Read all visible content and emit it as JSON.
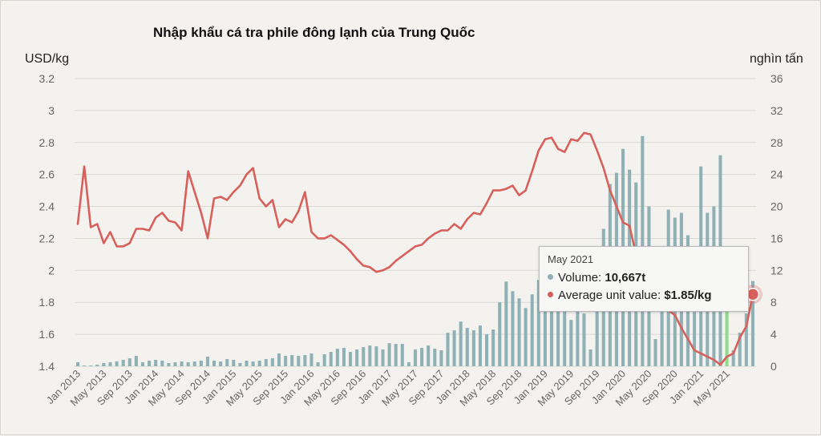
{
  "chart_data": {
    "type": "bar+line",
    "title": "Nhập khẩu cá tra phile đông lạnh của Trung Quốc",
    "y_left_label": "USD/kg",
    "y_right_label": "nghìn tấn",
    "y_left_ticks": [
      "1.4",
      "1.6",
      "1.8",
      "2",
      "2.2",
      "2.4",
      "2.6",
      "2.8",
      "3",
      "3.2"
    ],
    "y_right_ticks": [
      "0",
      "4",
      "8",
      "12",
      "16",
      "20",
      "24",
      "28",
      "32",
      "36"
    ],
    "ylim_left": [
      1.4,
      3.2
    ],
    "ylim_right": [
      0,
      36
    ],
    "grid": true,
    "x_tick_labels": [
      "Jan 2013",
      "May 2013",
      "Sep 2013",
      "Jan 2014",
      "May 2014",
      "Sep 2014",
      "Jan 2015",
      "May 2015",
      "Sep 2015",
      "Jan 2016",
      "May 2016",
      "Sep 2016",
      "Jan 2017",
      "May 2017",
      "Sep 2017",
      "Jan 2018",
      "May 2018",
      "Sep 2018",
      "Jan 2019",
      "May 2019",
      "Sep 2019",
      "Jan 2020",
      "May 2020",
      "Sep 2020",
      "Jan 2021",
      "May 2021"
    ],
    "x_start": "2013-01",
    "series": [
      {
        "name": "Volume",
        "unit": "nghìn tấn",
        "axis": "right",
        "kind": "bar",
        "values": [
          0.5,
          0.1,
          0.1,
          0.2,
          0.4,
          0.5,
          0.6,
          0.8,
          1.0,
          1.3,
          0.5,
          0.7,
          0.8,
          0.7,
          0.4,
          0.5,
          0.6,
          0.5,
          0.6,
          0.7,
          1.2,
          0.7,
          0.6,
          0.9,
          0.8,
          0.4,
          0.7,
          0.6,
          0.7,
          0.9,
          1.0,
          1.6,
          1.3,
          1.4,
          1.3,
          1.4,
          1.6,
          0.5,
          1.5,
          1.8,
          2.2,
          2.3,
          1.8,
          2.1,
          2.4,
          2.6,
          2.5,
          2.1,
          2.9,
          2.8,
          2.8,
          0.5,
          2.1,
          2.3,
          2.6,
          2.2,
          2.0,
          4.2,
          4.5,
          5.6,
          4.8,
          4.5,
          5.1,
          4.0,
          4.6,
          8.0,
          10.6,
          9.4,
          8.5,
          7.3,
          9.0,
          10.8,
          10.2,
          11.0,
          7.4,
          7.5,
          5.8,
          7.6,
          6.6,
          2.1,
          7.2,
          17.2,
          22.8,
          24.2,
          27.2,
          24.6,
          23.0,
          28.8,
          20.0,
          3.4,
          11.0,
          19.6,
          18.6,
          19.2,
          16.4,
          6.8,
          25.0,
          19.2,
          20.0,
          26.4,
          12.2,
          2.0,
          4.2,
          6.6,
          10.667
        ],
        "highlight_index": 100
      },
      {
        "name": "Average unit value",
        "unit": "USD/kg",
        "axis": "left",
        "kind": "line",
        "values": [
          2.29,
          2.65,
          2.27,
          2.29,
          2.17,
          2.24,
          2.15,
          2.15,
          2.17,
          2.26,
          2.26,
          2.25,
          2.33,
          2.36,
          2.31,
          2.3,
          2.25,
          2.62,
          2.49,
          2.36,
          2.2,
          2.45,
          2.46,
          2.44,
          2.49,
          2.53,
          2.6,
          2.64,
          2.45,
          2.4,
          2.44,
          2.27,
          2.32,
          2.3,
          2.37,
          2.49,
          2.24,
          2.2,
          2.2,
          2.22,
          2.19,
          2.16,
          2.12,
          2.07,
          2.03,
          2.02,
          1.99,
          2.0,
          2.02,
          2.06,
          2.09,
          2.12,
          2.15,
          2.16,
          2.2,
          2.23,
          2.25,
          2.25,
          2.29,
          2.26,
          2.32,
          2.36,
          2.35,
          2.42,
          2.5,
          2.5,
          2.51,
          2.53,
          2.47,
          2.5,
          2.62,
          2.75,
          2.82,
          2.83,
          2.76,
          2.74,
          2.82,
          2.81,
          2.86,
          2.85,
          2.75,
          2.64,
          2.5,
          2.4,
          2.3,
          2.28,
          2.1,
          2.01,
          1.99,
          1.95,
          1.9,
          1.75,
          1.72,
          1.64,
          1.57,
          1.5,
          1.48,
          1.46,
          1.44,
          1.41,
          1.46,
          1.48,
          1.58,
          1.65,
          1.85
        ],
        "highlight_index": 104
      }
    ],
    "tooltip": {
      "date": "May 2021",
      "volume_label": "Volume: ",
      "volume_value": "10,667t",
      "price_label": "Average unit value: ",
      "price_value": "$1.85/kg"
    },
    "colors": {
      "bar": "#8fb1b6",
      "bar_highlight": "#8ddc8a",
      "line": "#d7605b",
      "grid": "#dddad4",
      "background": "#f3f2ef"
    }
  }
}
